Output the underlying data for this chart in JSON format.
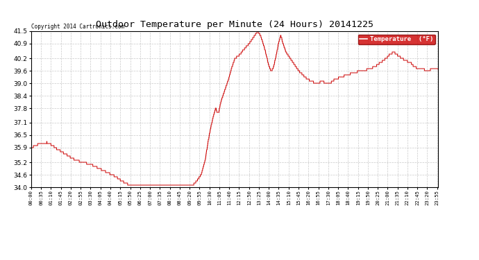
{
  "title": "Outdoor Temperature per Minute (24 Hours) 20141225",
  "copyright": "Copyright 2014 Cartronics.com",
  "legend_label": "Temperature  (°F)",
  "line_color": "#cc0000",
  "background_color": "#ffffff",
  "grid_color": "#bbbbbb",
  "ylim": [
    34.0,
    41.5
  ],
  "yticks": [
    34.0,
    34.6,
    35.2,
    35.9,
    36.5,
    37.1,
    37.8,
    38.4,
    39.0,
    39.6,
    40.2,
    40.9,
    41.5
  ],
  "xtick_interval_minutes": 35,
  "total_minutes": 1440
}
